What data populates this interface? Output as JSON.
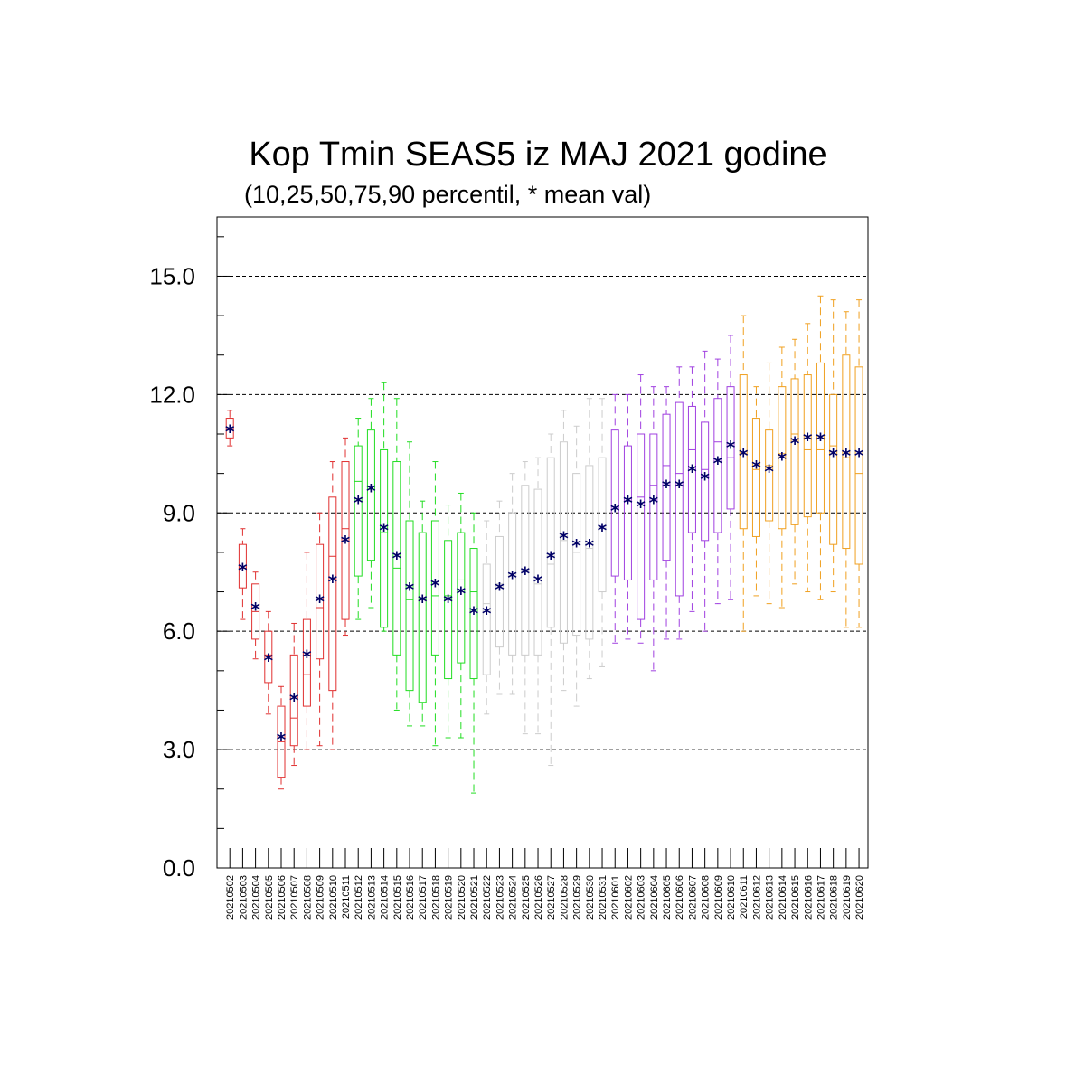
{
  "chart_data": {
    "type": "box",
    "title": "Kop Tmin SEAS5 iz MAJ 2021 godine",
    "subtitle": "(10,25,50,75,90 percentil, * mean val)",
    "xlabel": "",
    "ylabel": "",
    "ylim": [
      0,
      16.5
    ],
    "yticks": [
      "0.0",
      "3.0",
      "6.0",
      "9.0",
      "12.0",
      "15.0"
    ],
    "grid": "dashed horizontal at major ticks",
    "mean_marker": "*",
    "mean_color": "#000066",
    "categories": [
      "20210502",
      "20210503",
      "20210504",
      "20210505",
      "20210506",
      "20210507",
      "20210508",
      "20210509",
      "20210510",
      "20210511",
      "20210512",
      "20210513",
      "20210514",
      "20210515",
      "20210516",
      "20210517",
      "20210518",
      "20210519",
      "20210520",
      "20210521",
      "20210522",
      "20210523",
      "20210524",
      "20210525",
      "20210526",
      "20210527",
      "20210528",
      "20210529",
      "20210530",
      "20210531",
      "20210601",
      "20210602",
      "20210603",
      "20210604",
      "20210605",
      "20210606",
      "20210607",
      "20210608",
      "20210609",
      "20210610",
      "20210611",
      "20210612",
      "20210613",
      "20210614",
      "20210615",
      "20210616",
      "20210617",
      "20210618",
      "20210619",
      "20210620"
    ],
    "colors": [
      "#e03030",
      "#e03030",
      "#e03030",
      "#e03030",
      "#e03030",
      "#e03030",
      "#e03030",
      "#e03030",
      "#e03030",
      "#e03030",
      "#22dd22",
      "#22dd22",
      "#22dd22",
      "#22dd22",
      "#22dd22",
      "#22dd22",
      "#22dd22",
      "#22dd22",
      "#22dd22",
      "#22dd22",
      "#cccccc",
      "#cccccc",
      "#cccccc",
      "#cccccc",
      "#cccccc",
      "#cccccc",
      "#cccccc",
      "#cccccc",
      "#cccccc",
      "#cccccc",
      "#a040e0",
      "#a040e0",
      "#a040e0",
      "#a040e0",
      "#a040e0",
      "#a040e0",
      "#a040e0",
      "#a040e0",
      "#a040e0",
      "#a040e0",
      "#f0a020",
      "#f0a020",
      "#f0a020",
      "#f0a020",
      "#f0a020",
      "#f0a020",
      "#f0a020",
      "#f0a020",
      "#f0a020",
      "#f0a020"
    ],
    "p10": [
      10.7,
      6.3,
      5.3,
      3.9,
      2.0,
      2.6,
      3.0,
      3.1,
      3.0,
      5.9,
      6.3,
      6.6,
      6.0,
      4.0,
      3.6,
      3.6,
      3.1,
      3.3,
      3.3,
      1.9,
      3.9,
      4.4,
      4.4,
      3.4,
      3.4,
      2.6,
      4.5,
      4.1,
      4.8,
      5.1,
      5.7,
      5.8,
      5.7,
      5.0,
      5.8,
      5.8,
      6.5,
      6.0,
      6.7,
      6.8,
      6.0,
      6.9,
      6.7,
      6.6,
      7.2,
      7.0,
      6.8,
      7.0,
      6.1,
      6.1
    ],
    "p25": [
      10.9,
      7.1,
      5.8,
      4.7,
      2.3,
      3.1,
      4.1,
      5.3,
      4.5,
      6.3,
      7.4,
      7.8,
      6.1,
      5.4,
      4.5,
      4.2,
      5.4,
      4.8,
      5.2,
      4.8,
      4.9,
      5.6,
      5.4,
      5.4,
      5.4,
      6.1,
      5.7,
      5.9,
      5.8,
      7.0,
      7.4,
      7.3,
      6.3,
      7.3,
      7.8,
      6.9,
      8.5,
      8.3,
      8.5,
      9.1,
      8.6,
      8.4,
      8.8,
      8.6,
      8.7,
      8.9,
      9.0,
      8.2,
      8.1,
      7.7
    ],
    "p50": [
      11.1,
      7.6,
      6.5,
      5.4,
      3.2,
      3.8,
      4.9,
      6.6,
      7.9,
      8.6,
      9.8,
      9.6,
      8.5,
      7.6,
      6.8,
      6.8,
      6.9,
      6.9,
      7.3,
      7.0,
      6.7,
      7.2,
      7.4,
      7.3,
      7.2,
      7.7,
      8.3,
      8.0,
      8.1,
      8.6,
      9.2,
      9.3,
      9.4,
      9.7,
      10.2,
      10.0,
      10.6,
      10.1,
      10.8,
      10.4,
      10.5,
      10.1,
      10.2,
      10.5,
      11.0,
      10.6,
      10.6,
      10.7,
      10.4,
      10.0
    ],
    "p75": [
      11.4,
      8.2,
      7.2,
      6.0,
      4.1,
      5.4,
      6.3,
      8.2,
      9.4,
      10.3,
      10.7,
      11.1,
      10.6,
      10.3,
      8.8,
      8.5,
      8.8,
      8.3,
      8.5,
      8.1,
      7.7,
      8.4,
      9.0,
      9.7,
      9.6,
      10.4,
      10.8,
      10.0,
      10.2,
      10.4,
      11.1,
      10.7,
      11.0,
      11.0,
      11.5,
      11.8,
      11.7,
      11.3,
      11.9,
      12.2,
      12.5,
      11.4,
      11.1,
      12.2,
      12.4,
      12.5,
      12.8,
      12.0,
      13.0,
      12.7
    ],
    "p90": [
      11.6,
      8.6,
      7.5,
      6.5,
      4.6,
      6.2,
      8.0,
      9.0,
      10.3,
      10.9,
      11.4,
      11.9,
      12.3,
      11.9,
      10.8,
      9.3,
      10.3,
      9.2,
      9.5,
      9.0,
      8.8,
      9.3,
      10.0,
      10.3,
      10.4,
      11.0,
      11.6,
      11.2,
      11.9,
      11.9,
      12.0,
      12.0,
      12.5,
      12.2,
      12.2,
      12.7,
      12.7,
      13.1,
      12.9,
      13.5,
      14.0,
      12.2,
      12.8,
      13.2,
      13.4,
      13.8,
      14.5,
      14.4,
      14.1,
      14.4
    ],
    "mean": [
      11.1,
      7.6,
      6.6,
      5.3,
      3.3,
      4.3,
      5.4,
      6.8,
      7.3,
      8.3,
      9.3,
      9.6,
      8.6,
      7.9,
      7.1,
      6.8,
      7.2,
      6.8,
      7.0,
      6.5,
      6.5,
      7.1,
      7.4,
      7.5,
      7.3,
      7.9,
      8.4,
      8.2,
      8.2,
      8.6,
      9.1,
      9.3,
      9.2,
      9.3,
      9.7,
      9.7,
      10.1,
      9.9,
      10.3,
      10.7,
      10.5,
      10.2,
      10.1,
      10.4,
      10.8,
      10.9,
      10.9,
      10.5,
      10.5,
      10.5
    ]
  }
}
